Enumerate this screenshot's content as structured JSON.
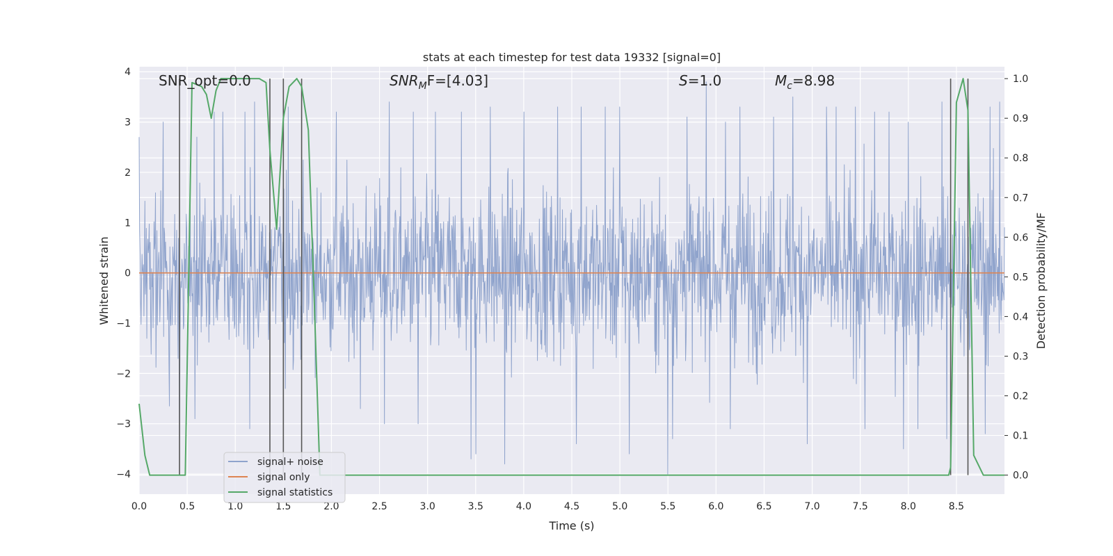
{
  "chart_data": {
    "type": "line",
    "title": "stats at each timestep for test data 19332 [signal=0]",
    "xlabel": "Time (s)",
    "ylabel": "Whitened strain",
    "y2label": "Detection probability/MF",
    "xlim": [
      0,
      9
    ],
    "ylim": [
      -4.4,
      4.1
    ],
    "y2lim": [
      -0.048,
      1.03
    ],
    "x_ticks": [
      "0.0",
      "0.5",
      "1.0",
      "1.5",
      "2.0",
      "2.5",
      "3.0",
      "3.5",
      "4.0",
      "4.5",
      "5.0",
      "5.5",
      "6.0",
      "6.5",
      "7.0",
      "7.5",
      "8.0",
      "8.5"
    ],
    "y_ticks": [
      "4",
      "3",
      "2",
      "1",
      "0",
      "−1",
      "−2",
      "−3",
      "−4"
    ],
    "y2_ticks": [
      "1.0",
      "0.9",
      "0.8",
      "0.7",
      "0.6",
      "0.5",
      "0.4",
      "0.3",
      "0.2",
      "0.1",
      "0.0"
    ],
    "grid": true,
    "annotations": {
      "snr_opt": "SNR_opt=0.0",
      "snr_mf_sym": "SNR",
      "snr_mf_sub": "M",
      "snr_mf_rest": "F=[4.03]",
      "s_sym": "S",
      "s_rest": "=1.0",
      "mc_sym": "M",
      "mc_sub": "c",
      "mc_rest": "=8.98"
    },
    "legend": {
      "position": "lower-left",
      "entries": [
        "signal+ noise",
        "signal only",
        "signal statistics"
      ]
    },
    "colors": {
      "noise": "#8fa3cc",
      "signal": "#dd8452",
      "stat": "#55a868",
      "vline": "#555555"
    },
    "series": [
      {
        "name": "signal+ noise",
        "axis": "left",
        "description_range": [
          -4.0,
          3.9
        ],
        "peaks_x": [
          0.0,
          0.25,
          0.42,
          0.6,
          0.78,
          0.87,
          1.1,
          1.2,
          1.55,
          2.05,
          2.6,
          2.85,
          3.08,
          3.35,
          3.45,
          3.5,
          3.65,
          4.0,
          4.35,
          4.6,
          4.85,
          5.0,
          5.5,
          5.7,
          5.9,
          6.1,
          6.25,
          6.6,
          6.8,
          7.15,
          7.25,
          7.45,
          7.65,
          7.8,
          8.0,
          8.35,
          8.85,
          8.95
        ],
        "peaks_y": [
          2.7,
          3.0,
          2.6,
          2.7,
          3.2,
          3.2,
          3.2,
          3.4,
          3.3,
          3.2,
          3.4,
          3.2,
          3.2,
          3.2,
          3.3,
          3.2,
          3.3,
          3.2,
          3.3,
          3.3,
          3.3,
          3.3,
          3.2,
          3.1,
          3.8,
          3.0,
          3.3,
          3.1,
          3.5,
          3.3,
          3.3,
          3.3,
          3.2,
          3.2,
          3.0,
          3.4,
          3.3,
          3.4
        ],
        "troughs_x": [
          0.42,
          0.58,
          1.15,
          1.52,
          2.3,
          2.55,
          2.9,
          3.45,
          3.5,
          3.8,
          4.55,
          5.1,
          5.5,
          5.55,
          6.15,
          6.95,
          7.55,
          7.95,
          8.1,
          8.4,
          8.8
        ],
        "troughs_y": [
          -3.3,
          -2.9,
          -3.1,
          -2.3,
          -2.7,
          -3.0,
          -3.0,
          -3.7,
          -3.6,
          -3.8,
          -3.4,
          -3.6,
          -4.0,
          -3.3,
          -3.1,
          -3.4,
          -3.1,
          -3.5,
          -3.1,
          -3.3,
          -3.2
        ]
      },
      {
        "name": "signal only",
        "axis": "left",
        "x": [
          0,
          9
        ],
        "y": [
          0,
          0
        ]
      },
      {
        "name": "signal statistics",
        "axis": "right",
        "x": [
          0.0,
          0.06,
          0.11,
          0.22,
          0.33,
          0.42,
          0.48,
          0.55,
          0.65,
          0.7,
          0.75,
          0.8,
          0.85,
          0.95,
          1.05,
          1.15,
          1.25,
          1.32,
          1.36,
          1.43,
          1.5,
          1.56,
          1.64,
          1.69,
          1.76,
          1.82,
          1.88,
          1.95,
          8.0,
          8.42,
          8.44,
          8.5,
          8.57,
          8.62,
          8.68,
          8.78,
          8.86,
          9.0
        ],
        "y": [
          0.18,
          0.05,
          0.0,
          0.0,
          0.0,
          0.0,
          0.0,
          0.99,
          0.98,
          0.96,
          0.9,
          0.97,
          1.0,
          1.0,
          1.0,
          1.0,
          1.0,
          0.99,
          0.82,
          0.62,
          0.9,
          0.98,
          1.0,
          0.98,
          0.87,
          0.45,
          0.0,
          0.0,
          0.0,
          0.0,
          0.02,
          0.94,
          1.0,
          0.92,
          0.05,
          0.0,
          0.0,
          0.0
        ]
      }
    ],
    "vlines_x": [
      0.42,
      1.36,
      1.5,
      1.69,
      8.44,
      8.62
    ]
  }
}
